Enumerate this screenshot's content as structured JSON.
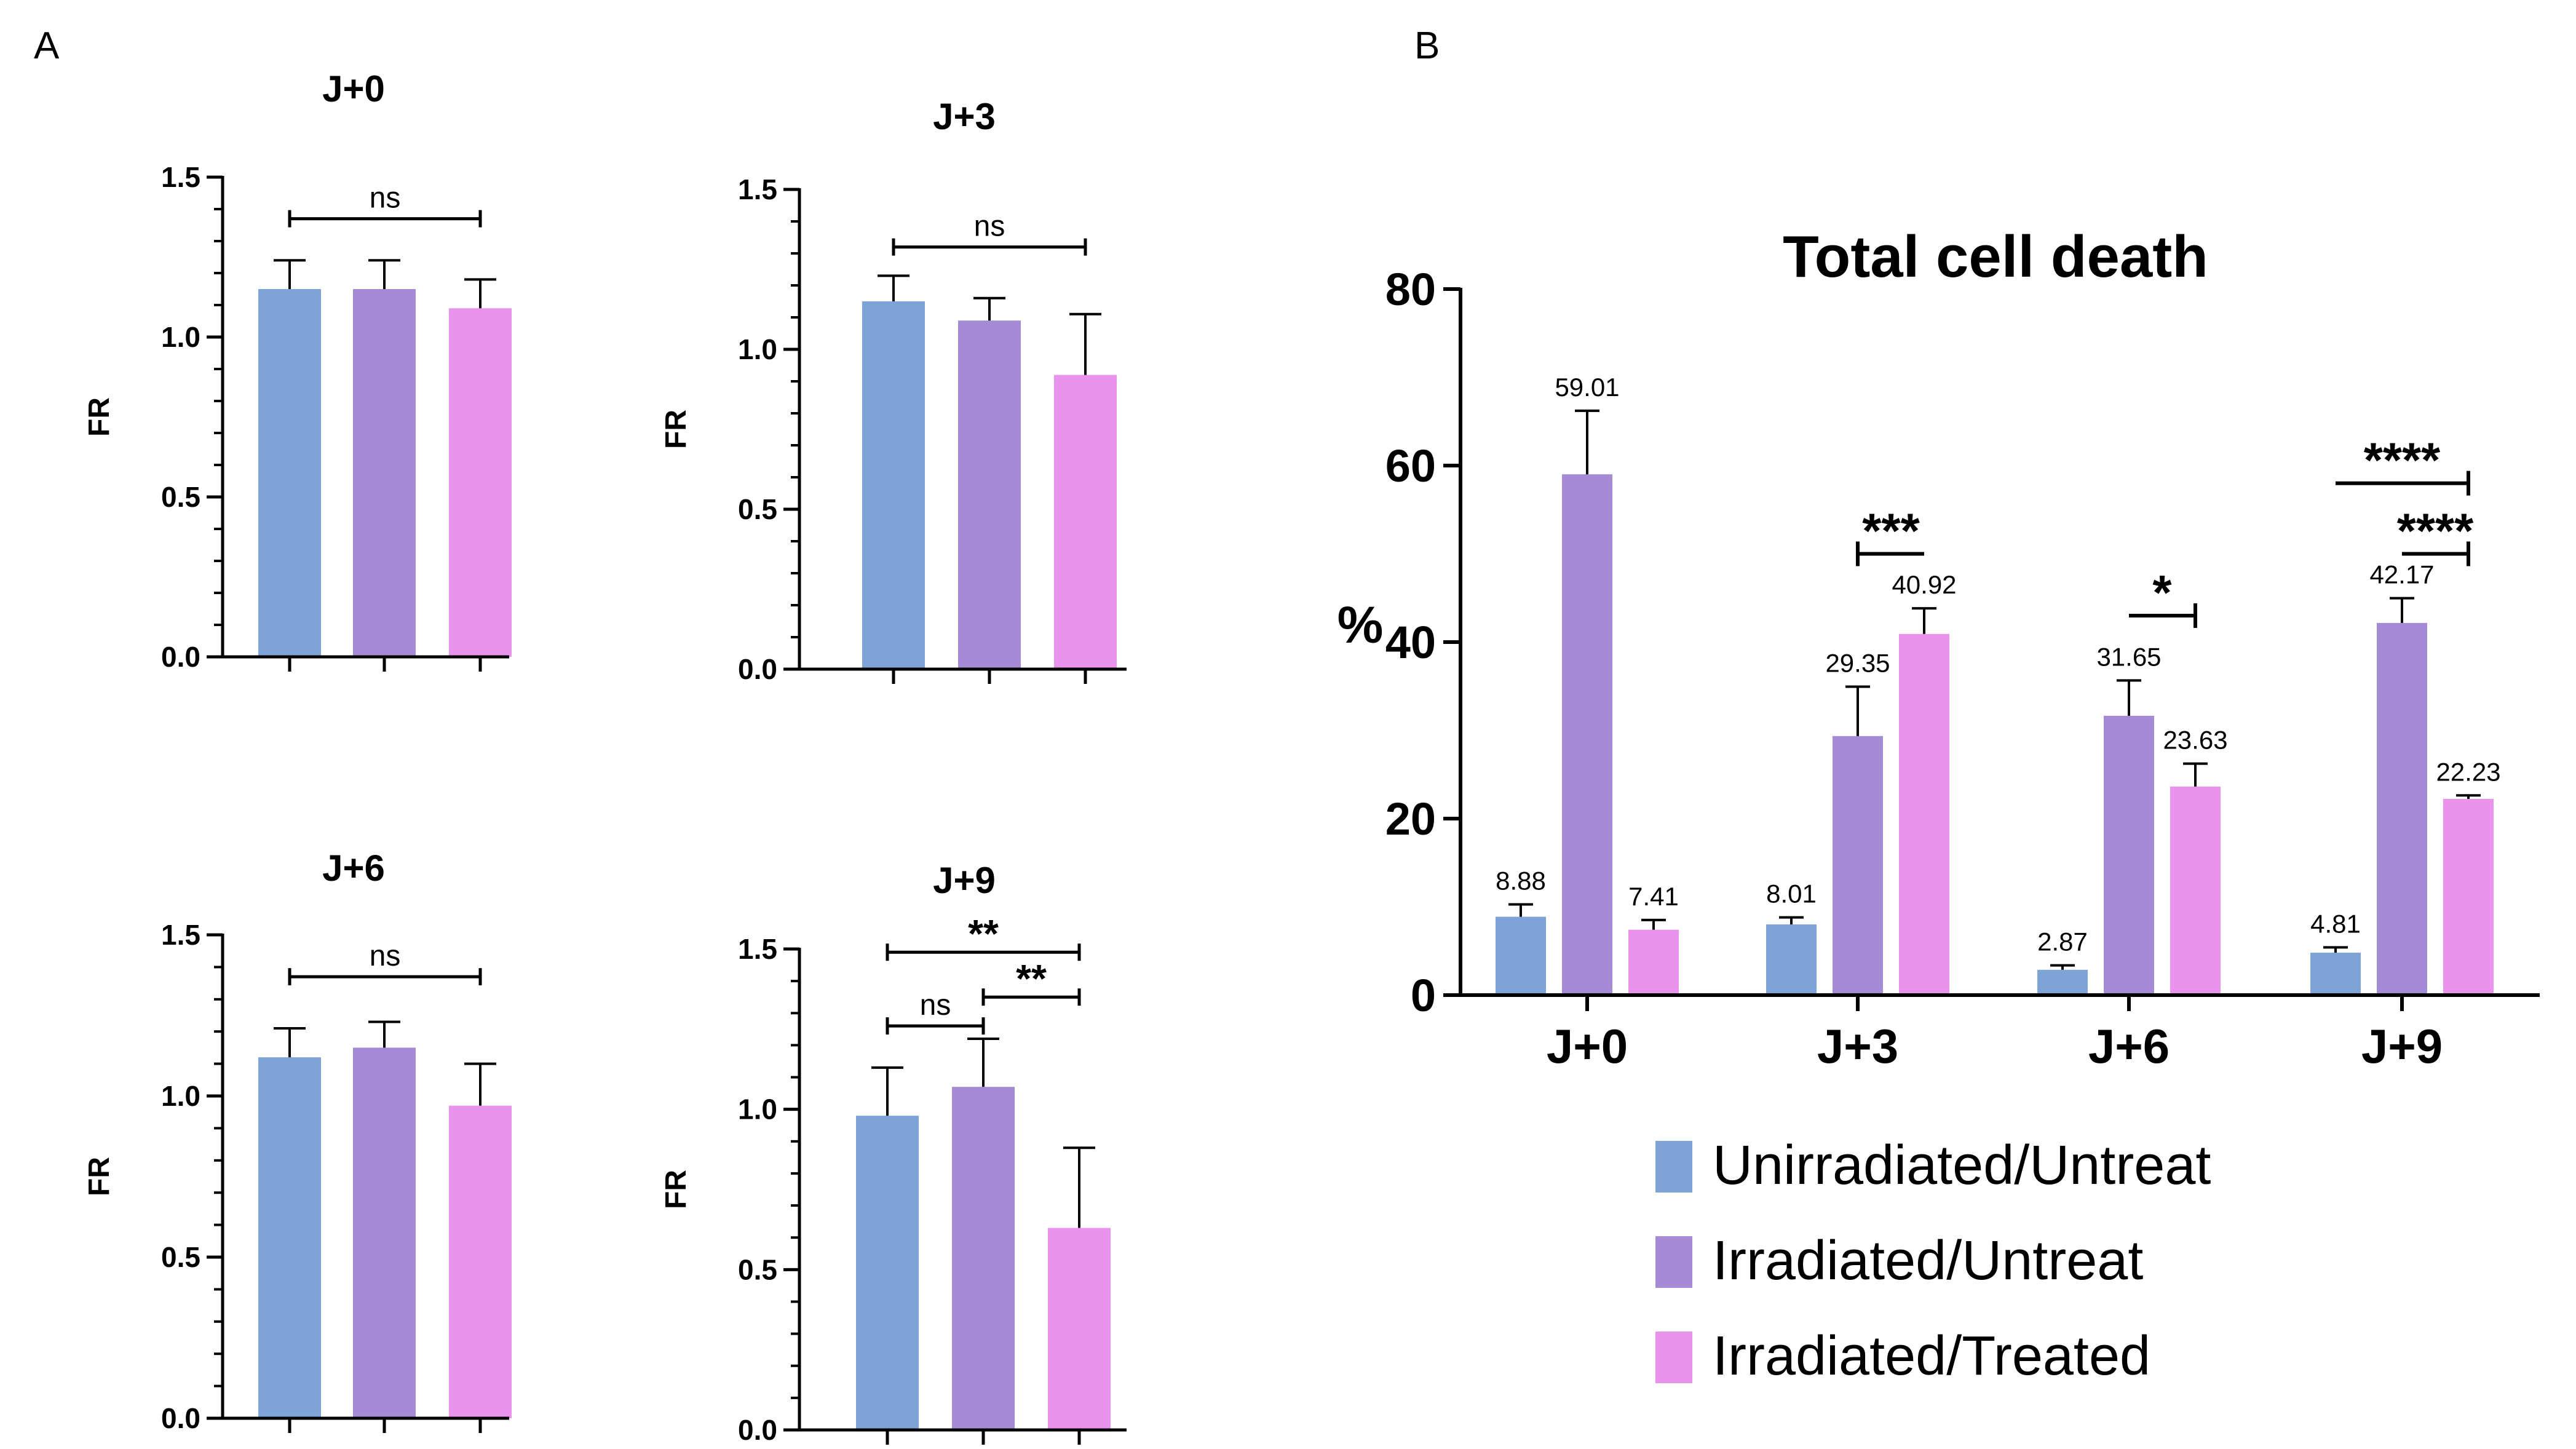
{
  "colors": {
    "unirradiated": "#7EA3D7",
    "irradiated": "#A58BD6",
    "treated": "#EA93EC",
    "ink": "#000000"
  },
  "panels": {
    "A": "A",
    "B": "B"
  },
  "chart_data": [
    {
      "id": "j0",
      "type": "bar",
      "title": "J+0",
      "ylabel": "FR",
      "ylim": [
        0,
        1.5
      ],
      "yticks": [
        "0.0",
        "0.5",
        "1.0",
        "1.5"
      ],
      "categories": [
        "Unirradiated/Untreat",
        "Irradiated/Untreat",
        "Irradiated/Treated"
      ],
      "values": [
        1.15,
        1.15,
        1.09
      ],
      "errors": [
        0.09,
        0.09,
        0.09
      ],
      "significance": [
        {
          "from": 0,
          "to": 2,
          "label": "ns",
          "y": 1.37
        }
      ]
    },
    {
      "id": "j3",
      "type": "bar",
      "title": "J+3",
      "ylabel": "FR",
      "ylim": [
        0,
        1.5
      ],
      "yticks": [
        "0.0",
        "0.5",
        "1.0",
        "1.5"
      ],
      "categories": [
        "Unirradiated/Untreat",
        "Irradiated/Untreat",
        "Irradiated/Treated"
      ],
      "values": [
        1.15,
        1.09,
        0.92
      ],
      "errors": [
        0.08,
        0.07,
        0.19
      ],
      "significance": [
        {
          "from": 0,
          "to": 2,
          "label": "ns",
          "y": 1.32
        }
      ]
    },
    {
      "id": "j6",
      "type": "bar",
      "title": "J+6",
      "ylabel": "FR",
      "ylim": [
        0,
        1.5
      ],
      "yticks": [
        "0.0",
        "0.5",
        "1.0",
        "1.5"
      ],
      "categories": [
        "Unirradiated/Untreat",
        "Irradiated/Untreat",
        "Irradiated/Treated"
      ],
      "values": [
        1.12,
        1.15,
        0.97
      ],
      "errors": [
        0.09,
        0.08,
        0.13
      ],
      "significance": [
        {
          "from": 0,
          "to": 2,
          "label": "ns",
          "y": 1.37
        }
      ]
    },
    {
      "id": "j9",
      "type": "bar",
      "title": "J+9",
      "ylabel": "FR",
      "ylim": [
        0,
        1.5
      ],
      "yticks": [
        "0.0",
        "0.5",
        "1.0",
        "1.5"
      ],
      "categories": [
        "Unirradiated/Untreat",
        "Irradiated/Untreat",
        "Irradiated/Treated"
      ],
      "values": [
        0.98,
        1.07,
        0.63
      ],
      "errors": [
        0.15,
        0.15,
        0.25
      ],
      "significance": [
        {
          "from": 0,
          "to": 2,
          "label": "**",
          "y": 1.49
        },
        {
          "from": 1,
          "to": 2,
          "label": "**",
          "y": 1.35
        },
        {
          "from": 0,
          "to": 1,
          "label": "ns",
          "y": 1.26
        }
      ]
    },
    {
      "id": "total",
      "type": "bar",
      "title": "Total cell death",
      "ylabel": "%",
      "ylim": [
        0,
        80
      ],
      "yticks": [
        "0",
        "20",
        "40",
        "60",
        "80"
      ],
      "categories": [
        "J+0",
        "J+3",
        "J+6",
        "J+9"
      ],
      "series": [
        {
          "name": "Unirradiated/Untreat",
          "values": [
            8.88,
            8.01,
            2.87,
            4.81
          ],
          "labels": [
            "8.88",
            "8.01",
            "2.87",
            "4.81"
          ],
          "errors": [
            1.4,
            0.8,
            0.5,
            0.6
          ]
        },
        {
          "name": "Irradiated/Untreat",
          "values": [
            59.01,
            29.35,
            31.65,
            42.17
          ],
          "labels": [
            "59.01",
            "29.35",
            "31.65",
            "42.17"
          ],
          "errors": [
            7.2,
            5.6,
            4.0,
            2.8
          ]
        },
        {
          "name": "Irradiated/Treated",
          "values": [
            7.41,
            40.92,
            23.63,
            22.23
          ],
          "labels": [
            "7.41",
            "40.92",
            "23.63",
            "22.23"
          ],
          "errors": [
            1.1,
            2.9,
            2.6,
            0.4
          ]
        }
      ],
      "significance": [
        {
          "group": 1,
          "from": 1,
          "to": 2,
          "label": "***",
          "y": 50
        },
        {
          "group": 2,
          "from": 1,
          "to": 2,
          "label": "*",
          "y": 43
        },
        {
          "group": 3,
          "from": 0,
          "to": 2,
          "label": "****",
          "y": 58
        },
        {
          "group": 3,
          "from": 1,
          "to": 2,
          "label": "****",
          "y": 50
        }
      ],
      "legend": [
        "Unirradiated/Untreat",
        "Irradiated/Untreat",
        "Irradiated/Treated"
      ]
    }
  ]
}
